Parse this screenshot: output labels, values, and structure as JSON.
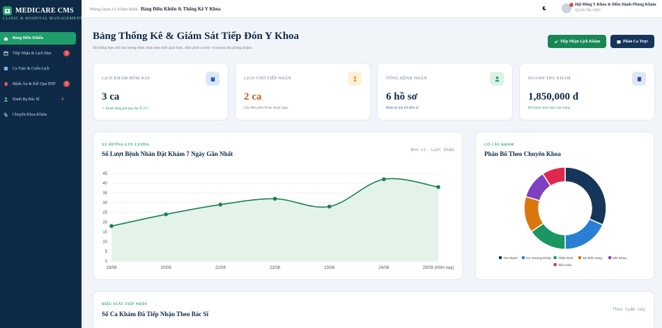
{
  "sidebar": {
    "brand": "MEDICARE CMS",
    "brand_sub": "CLINIC & HOSPITAL MANAGEMENT",
    "items": [
      {
        "label": "Bảng Điều Khiển",
        "icon": "home-icon",
        "badge": ""
      },
      {
        "label": "Tiếp Nhận & Lịch Hẹn",
        "icon": "calendar-icon",
        "badge": "2"
      },
      {
        "label": "Ca Trực & Cuốn Lịch",
        "icon": "clock-icon",
        "badge": ""
      },
      {
        "label": "Bệnh Án & Kết Quả PDF",
        "icon": "file-pdf-icon",
        "badge": "2"
      },
      {
        "label": "Danh Bạ Bác Sĩ",
        "icon": "doctor-icon",
        "badge": "4"
      },
      {
        "label": "Chuyên Khoa Khám",
        "icon": "stethoscope-icon",
        "badge": ""
      }
    ]
  },
  "topbar": {
    "crumb_parent": "Phòng Quản Lý Khám Bệnh /",
    "crumb_current": "Bảng Điều Khiển & Thống Kê Y Khoa",
    "user_name": "Hội Đồng Y Khoa & Điều Hành Phòng Khám",
    "user_role": "QUẢN TRỊ VIÊN"
  },
  "header": {
    "title": "Bảng Thống Kê & Giám Sát Tiếp Đón Y Khoa",
    "subtitle": "Hệ thống theo dõi lưu lượng bệnh nhân theo thời gian thực, điều phối ca trực và doanh thu phòng khám.",
    "btn_primary": "Tiếp Nhận Lịch Khám",
    "btn_secondary": "Phân Ca Trực"
  },
  "stats": [
    {
      "label": "LỊCH KHÁM HÔM NAY",
      "value": "3 ca",
      "note": "Khám đang giữ hạn đạt 95.5%",
      "icon": "clipboard-icon",
      "value_color": "#0f2a47",
      "note_color": "#1f9d6b",
      "icon_bg": "#dbe8fb",
      "icon_color": "#1f5fbf"
    },
    {
      "label": "LỊCH CHỜ TIẾP NHẬN",
      "value": "2 ca",
      "note": "Cần điều phối lễ tân duyệt ngay",
      "icon": "hourglass-icon",
      "value_color": "#c0631a",
      "note_color": "#6b7785",
      "icon_bg": "#fdf0d3",
      "icon_color": "#c98a10"
    },
    {
      "label": "TỔNG BỆNH NHÂN",
      "value": "6 hồ sơ",
      "note": "Bệnh án lưu trữ điện tử",
      "icon": "user-injured-icon",
      "value_color": "#0f2a47",
      "note_color": "#1f5fbf",
      "icon_bg": "#d8f3e5",
      "icon_color": "#1f9d6b"
    },
    {
      "label": "DOANH THU KHÁM",
      "value": "1,850,000 đ",
      "note": "Đã thanh toán hoặc cam trúng",
      "icon": "money-icon",
      "value_color": "#0f2a47",
      "note_color": "#1f9d6b",
      "icon_bg": "#e0e6f7",
      "icon_color": "#2b4a8a"
    }
  ],
  "trend": {
    "kicker": "XU HƯỚNG LƯU LƯỢNG",
    "title": "Số Lượt Bệnh Nhân Đặt Khám 7 Ngày Gần Nhất",
    "unit": "Đơn vị: Lượt khám"
  },
  "donut": {
    "kicker": "CƠ CẤU KHÁM",
    "title": "Phân Bổ Theo Chuyên Khoa"
  },
  "bottom": {
    "kicker": "HIỆU SUẤT TIẾP NHẬN",
    "title": "Số Ca Khám Đã Tiếp Nhận Theo Bác Sĩ",
    "unit": "Theo tuần này"
  },
  "chart_data": [
    {
      "type": "line",
      "title": "Số Lượt Bệnh Nhân Đặt Khám 7 Ngày Gần Nhất",
      "x": [
        "19/08",
        "20/08",
        "21/08",
        "22/08",
        "23/08",
        "24/08",
        "25/08 (Hôm nay)"
      ],
      "y_ticks": [
        "0",
        "5",
        "10",
        "15",
        "20",
        "25",
        "30",
        "35",
        "40",
        "45"
      ],
      "series": [
        {
          "name": "",
          "values": [
            18,
            24,
            29,
            32,
            28,
            42,
            38
          ]
        }
      ],
      "ylim": [
        0,
        45
      ],
      "grid": true,
      "color": "#1a7f55",
      "fill": "#e3f3ea"
    },
    {
      "type": "pie",
      "title": "Phân Bổ Theo Chuyên Khoa",
      "categories": [
        "Tim Mạch",
        "Cơ Xương Khớp",
        "Thần Kinh",
        "Tai Mũi Họng",
        "Nhi Khoa",
        "Tiêu Hóa"
      ],
      "values": [
        31,
        18,
        15,
        14,
        11,
        9
      ],
      "colors": [
        "#15355a",
        "#2a7fd4",
        "#1a9660",
        "#d9770e",
        "#7e3fc0",
        "#e0284f"
      ],
      "legend": "bottom"
    }
  ]
}
